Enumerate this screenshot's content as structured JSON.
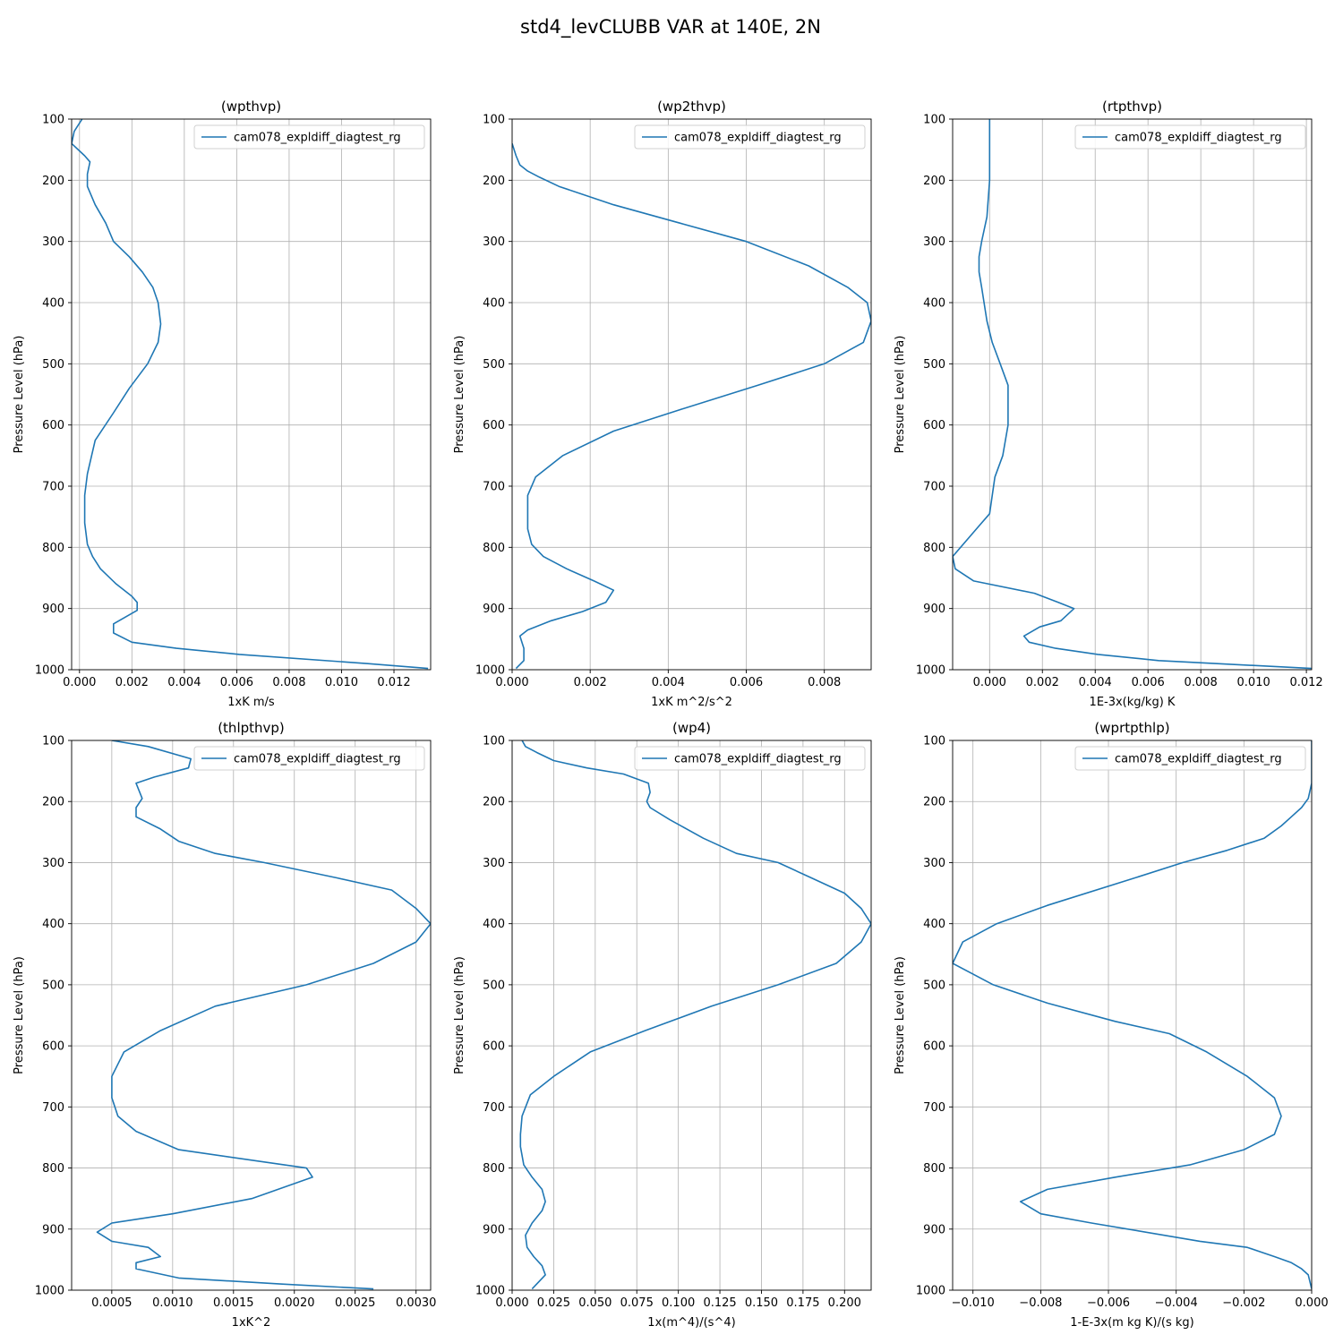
{
  "figure_title": "std4_levCLUBB VAR at 140E, 2N",
  "line_color": "#1f77b4",
  "chart_data": [
    {
      "type": "line",
      "title": "(wpthvp)",
      "xlabel": "1xK m/s",
      "ylabel": "Pressure Level (hPa)",
      "xlim": [
        -0.0003,
        0.0134
      ],
      "ylim": [
        1000,
        100
      ],
      "xticks": [
        0.0,
        0.002,
        0.004,
        0.006,
        0.008,
        0.01,
        0.012
      ],
      "xtick_labels": [
        "0.000",
        "0.002",
        "0.004",
        "0.006",
        "0.008",
        "0.010",
        "0.012"
      ],
      "yticks": [
        100,
        200,
        300,
        400,
        500,
        600,
        700,
        800,
        900,
        1000
      ],
      "ytick_labels": [
        "100",
        "200",
        "300",
        "400",
        "500",
        "600",
        "700",
        "800",
        "900",
        "1000"
      ],
      "grid": true,
      "legend": "top-right",
      "series": [
        {
          "name": "cam078_expldiff_diagtest_rg",
          "x": [
            0.0001,
            -0.0002,
            -0.0003,
            0.0002,
            0.0004,
            0.0003,
            0.0003,
            0.0006,
            0.001,
            0.0013,
            0.0019,
            0.0024,
            0.0028,
            0.003,
            0.0031,
            0.003,
            0.0026,
            0.0019,
            0.0013,
            0.0006,
            0.0003,
            0.0002,
            0.0002,
            0.0003,
            0.0005,
            0.0008,
            0.0014,
            0.002,
            0.0022,
            0.0022,
            0.0013,
            0.0013,
            0.002,
            0.0037,
            0.0061,
            0.011,
            0.0133
          ],
          "y": [
            100,
            120,
            140,
            160,
            170,
            190,
            210,
            240,
            270,
            300,
            325,
            350,
            375,
            400,
            435,
            465,
            500,
            540,
            580,
            625,
            680,
            715,
            760,
            795,
            815,
            835,
            860,
            880,
            890,
            903,
            925,
            940,
            955,
            965,
            975,
            990,
            998
          ]
        }
      ]
    },
    {
      "type": "line",
      "title": "(wp2thvp)",
      "xlabel": "1xK m^2/s^2",
      "ylabel": "Pressure Level (hPa)",
      "xlim": [
        0.0,
        0.0092
      ],
      "ylim": [
        1000,
        100
      ],
      "xticks": [
        0.0,
        0.002,
        0.004,
        0.006,
        0.008
      ],
      "xtick_labels": [
        "0.000",
        "0.002",
        "0.004",
        "0.006",
        "0.008"
      ],
      "yticks": [
        100,
        200,
        300,
        400,
        500,
        600,
        700,
        800,
        900,
        1000
      ],
      "ytick_labels": [
        "100",
        "200",
        "300",
        "400",
        "500",
        "600",
        "700",
        "800",
        "900",
        "1000"
      ],
      "grid": true,
      "legend": "top-right",
      "series": [
        {
          "name": "cam078_expldiff_diagtest_rg",
          "x": [
            0.0,
            0.0001,
            0.0002,
            0.0004,
            0.0007,
            0.0012,
            0.0026,
            0.0043,
            0.006,
            0.0076,
            0.0086,
            0.0091,
            0.0092,
            0.009,
            0.008,
            0.0063,
            0.0043,
            0.0026,
            0.0013,
            0.0006,
            0.0004,
            0.0004,
            0.0004,
            0.0005,
            0.0008,
            0.0014,
            0.0021,
            0.0026,
            0.0024,
            0.0018,
            0.001,
            0.0004,
            0.0002,
            0.0003,
            0.0003,
            0.0001
          ],
          "y": [
            140,
            160,
            175,
            185,
            195,
            210,
            240,
            270,
            300,
            340,
            375,
            400,
            430,
            465,
            500,
            535,
            575,
            610,
            650,
            685,
            715,
            745,
            770,
            795,
            815,
            835,
            855,
            870,
            890,
            905,
            920,
            935,
            945,
            965,
            985,
            998
          ]
        }
      ]
    },
    {
      "type": "line",
      "title": "(rtpthvp)",
      "xlabel": "1E-3x(kg/kg) K",
      "ylabel": "Pressure Level (hPa)",
      "xlim": [
        -0.0014,
        0.0122
      ],
      "ylim": [
        1000,
        100
      ],
      "xticks": [
        0.0,
        0.002,
        0.004,
        0.006,
        0.008,
        0.01,
        0.012
      ],
      "xtick_labels": [
        "0.000",
        "0.002",
        "0.004",
        "0.006",
        "0.008",
        "0.010",
        "0.012"
      ],
      "yticks": [
        100,
        200,
        300,
        400,
        500,
        600,
        700,
        800,
        900,
        1000
      ],
      "ytick_labels": [
        "100",
        "200",
        "300",
        "400",
        "500",
        "600",
        "700",
        "800",
        "900",
        "1000"
      ],
      "grid": true,
      "legend": "top-right",
      "series": [
        {
          "name": "cam078_expldiff_diagtest_rg",
          "x": [
            0.0,
            0.0,
            0.0,
            -0.0001,
            -0.0003,
            -0.0004,
            -0.0004,
            -0.0003,
            -0.0001,
            0.0001,
            0.0004,
            0.0007,
            0.0007,
            0.0007,
            0.0005,
            0.0002,
            0.0,
            -0.0004,
            -0.0014,
            -0.0013,
            -0.0006,
            0.0017,
            0.0026,
            0.0032,
            0.0027,
            0.0019,
            0.0013,
            0.0015,
            0.0025,
            0.0041,
            0.0064,
            0.0122
          ],
          "y": [
            100,
            150,
            200,
            260,
            300,
            325,
            350,
            375,
            430,
            465,
            500,
            535,
            570,
            600,
            650,
            685,
            745,
            765,
            815,
            835,
            855,
            875,
            890,
            900,
            920,
            930,
            945,
            955,
            965,
            975,
            985,
            998
          ]
        }
      ]
    },
    {
      "type": "line",
      "title": "(thlpthvp)",
      "xlabel": "1xK^2",
      "ylabel": "Pressure Level (hPa)",
      "xlim": [
        0.00017,
        0.00312
      ],
      "ylim": [
        1000,
        100
      ],
      "xticks": [
        0.0005,
        0.001,
        0.0015,
        0.002,
        0.0025,
        0.003
      ],
      "xtick_labels": [
        "0.0005",
        "0.0010",
        "0.0015",
        "0.0020",
        "0.0025",
        "0.0030"
      ],
      "yticks": [
        100,
        200,
        300,
        400,
        500,
        600,
        700,
        800,
        900,
        1000
      ],
      "ytick_labels": [
        "100",
        "200",
        "300",
        "400",
        "500",
        "600",
        "700",
        "800",
        "900",
        "1000"
      ],
      "grid": true,
      "legend": "top-right",
      "series": [
        {
          "name": "cam078_expldiff_diagtest_rg",
          "x": [
            0.0005,
            0.0008,
            0.00115,
            0.00113,
            0.00085,
            0.0007,
            0.00075,
            0.0007,
            0.0007,
            0.0009,
            0.00105,
            0.00135,
            0.00175,
            0.00235,
            0.0028,
            0.003,
            0.00312,
            0.003,
            0.00265,
            0.0021,
            0.00135,
            0.0009,
            0.0006,
            0.0005,
            0.0005,
            0.00055,
            0.0007,
            0.00105,
            0.0021,
            0.00215,
            0.00165,
            0.001,
            0.0005,
            0.00038,
            0.0005,
            0.0008,
            0.0009,
            0.0007,
            0.0007,
            0.00105,
            0.0019,
            0.00265
          ],
          "y": [
            100,
            110,
            130,
            145,
            160,
            170,
            195,
            210,
            225,
            245,
            265,
            285,
            300,
            325,
            345,
            375,
            400,
            430,
            465,
            500,
            535,
            575,
            610,
            650,
            685,
            715,
            740,
            770,
            800,
            815,
            850,
            875,
            890,
            905,
            920,
            930,
            945,
            955,
            965,
            980,
            990,
            998
          ]
        }
      ]
    },
    {
      "type": "line",
      "title": "(wp4)",
      "xlabel": "1x(m^4)/(s^4)",
      "ylabel": "Pressure Level (hPa)",
      "xlim": [
        0.0,
        0.216
      ],
      "ylim": [
        1000,
        100
      ],
      "xticks": [
        0.0,
        0.025,
        0.05,
        0.075,
        0.1,
        0.125,
        0.15,
        0.175,
        0.2
      ],
      "xtick_labels": [
        "0.000",
        "0.025",
        "0.050",
        "0.075",
        "0.100",
        "0.125",
        "0.150",
        "0.175",
        "0.200"
      ],
      "yticks": [
        100,
        200,
        300,
        400,
        500,
        600,
        700,
        800,
        900,
        1000
      ],
      "ytick_labels": [
        "100",
        "200",
        "300",
        "400",
        "500",
        "600",
        "700",
        "800",
        "900",
        "1000"
      ],
      "grid": true,
      "legend": "top-right",
      "series": [
        {
          "name": "cam078_expldiff_diagtest_rg",
          "x": [
            0.006,
            0.008,
            0.015,
            0.025,
            0.045,
            0.067,
            0.082,
            0.083,
            0.081,
            0.083,
            0.095,
            0.115,
            0.135,
            0.16,
            0.18,
            0.2,
            0.21,
            0.216,
            0.21,
            0.195,
            0.16,
            0.12,
            0.08,
            0.047,
            0.025,
            0.011,
            0.006,
            0.005,
            0.005,
            0.007,
            0.012,
            0.018,
            0.02,
            0.018,
            0.012,
            0.008,
            0.009,
            0.013,
            0.018,
            0.02,
            0.012
          ],
          "y": [
            100,
            110,
            120,
            133,
            145,
            155,
            170,
            185,
            200,
            210,
            230,
            260,
            285,
            300,
            325,
            350,
            375,
            400,
            430,
            465,
            500,
            535,
            575,
            610,
            650,
            680,
            715,
            745,
            765,
            795,
            815,
            835,
            855,
            870,
            890,
            910,
            930,
            945,
            960,
            975,
            998
          ]
        }
      ]
    },
    {
      "type": "line",
      "title": "(wprtpthlp)",
      "xlabel": "1-E-3x(m kg K)/(s kg)",
      "ylabel": "Pressure Level (hPa)",
      "xlim": [
        -0.0106,
        0.0
      ],
      "ylim": [
        1000,
        100
      ],
      "xticks": [
        -0.01,
        -0.008,
        -0.006,
        -0.004,
        -0.002,
        0.0
      ],
      "xtick_labels": [
        "−0.010",
        "−0.008",
        "−0.006",
        "−0.004",
        "−0.002",
        "0.000"
      ],
      "yticks": [
        100,
        200,
        300,
        400,
        500,
        600,
        700,
        800,
        900,
        1000
      ],
      "ytick_labels": [
        "100",
        "200",
        "300",
        "400",
        "500",
        "600",
        "700",
        "800",
        "900",
        "1000"
      ],
      "grid": true,
      "legend": "top-right",
      "series": [
        {
          "name": "cam078_expldiff_diagtest_rg",
          "x": [
            0.0,
            0.0,
            -0.0001,
            -0.0003,
            -0.0006,
            -0.0009,
            -0.0014,
            -0.0025,
            -0.0038,
            -0.0055,
            -0.0078,
            -0.0093,
            -0.0103,
            -0.0106,
            -0.0094,
            -0.0078,
            -0.0058,
            -0.0042,
            -0.0031,
            -0.0019,
            -0.0011,
            -0.0009,
            -0.0011,
            -0.002,
            -0.0036,
            -0.0058,
            -0.0078,
            -0.0086,
            -0.008,
            -0.0065,
            -0.0033,
            -0.0019,
            -0.0011,
            -0.0006,
            -0.0003,
            -0.0001,
            0.0
          ],
          "y": [
            100,
            170,
            195,
            210,
            225,
            240,
            260,
            280,
            300,
            330,
            370,
            400,
            430,
            465,
            500,
            530,
            560,
            580,
            610,
            650,
            685,
            715,
            745,
            770,
            795,
            815,
            835,
            855,
            875,
            890,
            920,
            930,
            945,
            955,
            965,
            975,
            998
          ]
        }
      ]
    }
  ]
}
